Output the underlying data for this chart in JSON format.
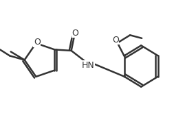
{
  "bg_color": "#ffffff",
  "line_color": "#333333",
  "line_width": 1.8,
  "font_size": 9,
  "atoms": {
    "O_label": "O",
    "NH_label": "HN",
    "O2_label": "O",
    "carbonyl_O": "O"
  }
}
